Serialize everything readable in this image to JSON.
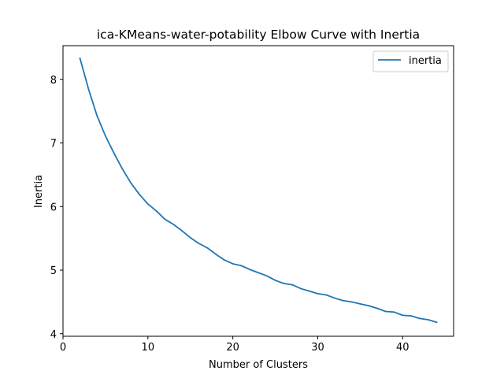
{
  "chart_data": {
    "type": "line",
    "title": "ica-KMeans-water-potability Elbow Curve with Inertia",
    "xlabel": "Number of Clusters",
    "ylabel": "Inertia",
    "xlim": [
      0,
      46
    ],
    "ylim": [
      3.96,
      8.53
    ],
    "xticks": [
      "0",
      "10",
      "20",
      "30",
      "40"
    ],
    "yticks": [
      "4",
      "5",
      "6",
      "7",
      "8"
    ],
    "grid": false,
    "legend_position": "top-right",
    "series": [
      {
        "name": "inertia",
        "color": "#1f77b4",
        "x": [
          2,
          3,
          4,
          5,
          6,
          7,
          8,
          9,
          10,
          11,
          12,
          13,
          14,
          15,
          16,
          17,
          18,
          19,
          20,
          21,
          22,
          23,
          24,
          25,
          26,
          27,
          28,
          29,
          30,
          31,
          32,
          33,
          34,
          35,
          36,
          37,
          38,
          39,
          40,
          41,
          42,
          43,
          44
        ],
        "y": [
          8.33,
          7.85,
          7.43,
          7.11,
          6.84,
          6.59,
          6.37,
          6.19,
          6.04,
          5.93,
          5.8,
          5.72,
          5.62,
          5.51,
          5.42,
          5.35,
          5.25,
          5.16,
          5.1,
          5.07,
          5.01,
          4.96,
          4.91,
          4.84,
          4.79,
          4.77,
          4.71,
          4.67,
          4.63,
          4.61,
          4.56,
          4.52,
          4.5,
          4.47,
          4.44,
          4.4,
          4.35,
          4.34,
          4.29,
          4.28,
          4.24,
          4.22,
          4.18
        ]
      }
    ]
  }
}
